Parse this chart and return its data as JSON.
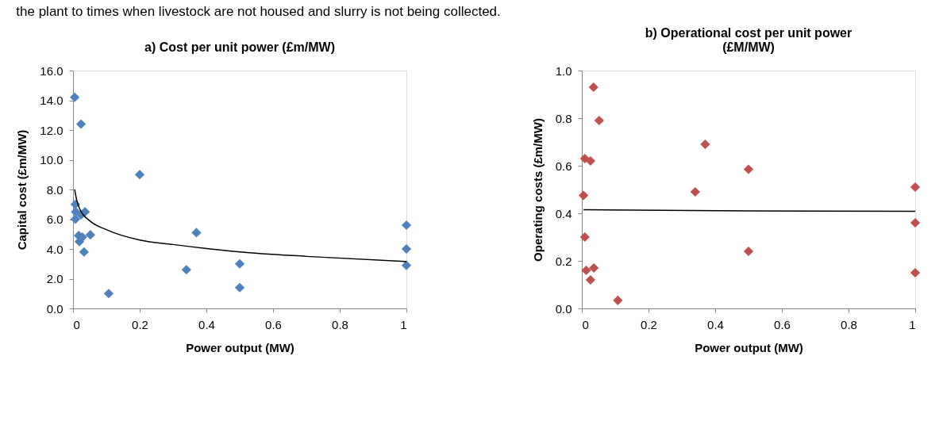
{
  "chart_data": [
    {
      "type": "scatter",
      "title": "a)  Cost per unit power (£m/MW)",
      "xlabel": "Power output (MW)",
      "ylabel": "Capital cost (£m/MW)",
      "annotations": [
        "the plant to times when livestock are not housed and slurry is not being collected."
      ],
      "grid": false,
      "xlim": [
        0,
        1
      ],
      "xticks": [
        0,
        0.2,
        0.4,
        0.6,
        0.8,
        1
      ],
      "ylim": [
        0,
        16
      ],
      "yticks": [
        {
          "value": 0,
          "label": "0.0"
        },
        {
          "value": 2,
          "label": "2.0"
        },
        {
          "value": 4,
          "label": "4.0"
        },
        {
          "value": 6,
          "label": "6.0"
        },
        {
          "value": 8,
          "label": "8.0"
        },
        {
          "value": 10,
          "label": "10.0"
        },
        {
          "value": 12,
          "label": "12.0"
        },
        {
          "value": 14,
          "label": "14.0"
        },
        {
          "value": 16,
          "label": "16.0"
        }
      ],
      "series": [
        {
          "type": "scatter",
          "marker": "diamond",
          "color": "#4f81bd",
          "x": [
            0.005,
            0.024,
            0.2,
            0.007,
            0.008,
            0.007,
            0.036,
            0.024,
            0.017,
            0.028,
            0.052,
            0.019,
            0.033,
            0.107,
            0.34,
            0.37,
            0.5,
            0.5,
            1,
            1,
            1
          ],
          "values": [
            14.2,
            12.4,
            9.0,
            7.0,
            6.5,
            6.0,
            6.5,
            6.3,
            4.9,
            4.8,
            4.95,
            4.5,
            3.8,
            1.0,
            2.6,
            5.1,
            3.0,
            1.4,
            5.6,
            4.0,
            2.9
          ]
        },
        {
          "type": "line",
          "color": "#000000",
          "x": [
            0.005,
            0.01,
            0.02,
            0.05,
            0.1,
            0.2,
            0.3,
            0.5,
            0.7,
            1
          ],
          "values": [
            8.0,
            7.4,
            6.7,
            5.9,
            5.3,
            4.6,
            4.3,
            3.8,
            3.5,
            3.15
          ]
        }
      ]
    },
    {
      "type": "scatter",
      "title": "b)  Operational cost per unit power\n(£M/MW)",
      "xlabel": "Power output (MW)",
      "ylabel": "Operating costs (£m/MW)",
      "grid": false,
      "xlim": [
        0,
        1
      ],
      "xticks": [
        0,
        0.2,
        0.4,
        0.6,
        0.8,
        1
      ],
      "ylim": [
        0,
        1
      ],
      "yticks": [
        {
          "value": 0,
          "label": "0.0"
        },
        0.2,
        0.4,
        0.6,
        0.8,
        {
          "value": 1,
          "label": "1.0"
        }
      ],
      "series": [
        {
          "type": "scatter",
          "marker": "diamond",
          "color": "#c0504d",
          "x": [
            0.035,
            0.052,
            0.009,
            0.026,
            0.005,
            0.009,
            0.013,
            0.036,
            0.026,
            0.108,
            0.34,
            0.37,
            0.5,
            0.5,
            1,
            1,
            1
          ],
          "values": [
            0.93,
            0.79,
            0.63,
            0.62,
            0.475,
            0.3,
            0.16,
            0.17,
            0.12,
            0.034,
            0.49,
            0.69,
            0.585,
            0.24,
            0.51,
            0.36,
            0.15
          ]
        },
        {
          "type": "line",
          "color": "#000000",
          "x": [
            0.005,
            0.5,
            1
          ],
          "values": [
            0.415,
            0.41,
            0.408
          ]
        }
      ]
    }
  ]
}
